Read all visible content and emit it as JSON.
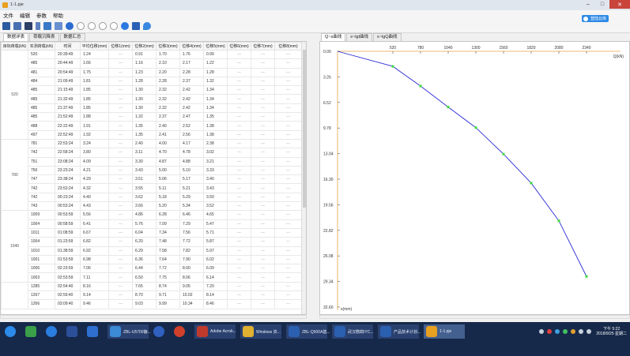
{
  "window": {
    "title": "1-1.pje"
  },
  "menu": [
    "文件",
    "编辑",
    "参数",
    "帮助"
  ],
  "login_button": "登陆云库",
  "left_tabs": [
    "数据详表",
    "荷载沉降表",
    "数据汇总"
  ],
  "table": {
    "headers": [
      "目标荷载(kN)",
      "实测荷载(kN)",
      "时间",
      "平均位移(mm)",
      "位移1(mm)",
      "位移2(mm)",
      "位移3(mm)",
      "位移4(mm)",
      "位移5(mm)",
      "位移6(mm)",
      "位移7(mm)",
      "位移8(mm)"
    ],
    "groups": [
      {
        "target": "520",
        "rows": [
          [
            "520",
            "20:39:49",
            "1.24",
            "—",
            "0.91",
            "1.70",
            "1.76",
            "0.99",
            "—",
            "—",
            "—"
          ],
          [
            "485",
            "20:44:49",
            "1.66",
            "—",
            "1.16",
            "2.10",
            "2.17",
            "1.22",
            "—",
            "—",
            "—"
          ],
          [
            "481",
            "20:54:49",
            "1.75",
            "—",
            "1.23",
            "2.20",
            "2.28",
            "1.28",
            "—",
            "—",
            "—"
          ],
          [
            "484",
            "21:09:49",
            "1.81",
            "—",
            "1.28",
            "2.28",
            "2.37",
            "1.32",
            "—",
            "—",
            "—"
          ],
          [
            "485",
            "21:15:49",
            "1.85",
            "—",
            "1.30",
            "2.32",
            "2.42",
            "1.34",
            "—",
            "—",
            "—"
          ],
          [
            "485",
            "21:32:49",
            "1.85",
            "—",
            "1.30",
            "2.32",
            "2.42",
            "1.34",
            "—",
            "—",
            "—"
          ],
          [
            "485",
            "21:37:49",
            "1.85",
            "—",
            "1.30",
            "2.32",
            "2.42",
            "1.34",
            "—",
            "—",
            "—"
          ],
          [
            "485",
            "21:52:49",
            "1.88",
            "—",
            "1.32",
            "2.37",
            "2.47",
            "1.35",
            "—",
            "—",
            "—"
          ],
          [
            "488",
            "22:22:49",
            "1.91",
            "—",
            "1.35",
            "2.40",
            "2.52",
            "1.38",
            "—",
            "—",
            "—"
          ],
          [
            "497",
            "22:52:49",
            "1.92",
            "—",
            "1.35",
            "2.41",
            "2.56",
            "1.38",
            "—",
            "—",
            "—"
          ]
        ]
      },
      {
        "target": "780",
        "rows": [
          [
            "781",
            "22:53:24",
            "3.24",
            "—",
            "2.40",
            "4.00",
            "4.17",
            "2.38",
            "—",
            "—",
            "—"
          ],
          [
            "742",
            "22:58:24",
            "3.80",
            "—",
            "3.11",
            "4.70",
            "4.78",
            "3.02",
            "—",
            "—",
            "—"
          ],
          [
            "751",
            "23:08:24",
            "4.09",
            "—",
            "3.30",
            "4.87",
            "4.88",
            "3.21",
            "—",
            "—",
            "—"
          ],
          [
            "750",
            "23:23:24",
            "4.21",
            "—",
            "3.43",
            "5.00",
            "5.10",
            "3.33",
            "—",
            "—",
            "—"
          ],
          [
            "747",
            "23:38:24",
            "4.29",
            "—",
            "3.51",
            "5.06",
            "5.17",
            "3.40",
            "—",
            "—",
            "—"
          ],
          [
            "742",
            "23:53:24",
            "4.32",
            "—",
            "3.55",
            "5.11",
            "5.21",
            "3.43",
            "—",
            "—",
            "—"
          ],
          [
            "742",
            "00:23:24",
            "4.40",
            "—",
            "3.62",
            "5.18",
            "5.29",
            "3.50",
            "—",
            "—",
            "—"
          ],
          [
            "743",
            "00:53:24",
            "4.43",
            "—",
            "3.66",
            "5.20",
            "5.34",
            "3.52",
            "—",
            "—",
            "—"
          ]
        ]
      },
      {
        "target": "1040",
        "rows": [
          [
            "1009",
            "00:53:59",
            "5.56",
            "—",
            "4.86",
            "6.28",
            "6.46",
            "4.65",
            "—",
            "—",
            "—"
          ],
          [
            "1004",
            "00:58:59",
            "6.41",
            "—",
            "5.76",
            "7.09",
            "7.29",
            "5.47",
            "—",
            "—",
            "—"
          ],
          [
            "1011",
            "01:08:59",
            "6.67",
            "—",
            "6.04",
            "7.34",
            "7.56",
            "5.71",
            "—",
            "—",
            "—"
          ],
          [
            "1004",
            "01:23:59",
            "6.82",
            "—",
            "6.20",
            "7.48",
            "7.72",
            "5.87",
            "—",
            "—",
            "—"
          ],
          [
            "1010",
            "01:38:59",
            "6.92",
            "—",
            "6.29",
            "7.58",
            "7.82",
            "5.97",
            "—",
            "—",
            "—"
          ],
          [
            "1001",
            "01:53:59",
            "6.98",
            "—",
            "6.36",
            "7.64",
            "7.90",
            "6.02",
            "—",
            "—",
            "—"
          ],
          [
            "1006",
            "02:23:59",
            "7.06",
            "—",
            "6.44",
            "7.72",
            "8.00",
            "6.09",
            "—",
            "—",
            "—"
          ],
          [
            "1003",
            "02:53:59",
            "7.11",
            "—",
            "6.50",
            "7.75",
            "8.06",
            "6.14",
            "—",
            "—",
            "—"
          ]
        ]
      },
      {
        "target": "",
        "rows": [
          [
            "1285",
            "02:54:40",
            "8.16",
            "—",
            "7.65",
            "8.74",
            "9.05",
            "7.20",
            "—",
            "—",
            "—"
          ],
          [
            "1267",
            "02:59:40",
            "9.14",
            "—",
            "8.70",
            "9.71",
            "10.02",
            "8.14",
            "—",
            "—",
            "—"
          ],
          [
            "1266",
            "03:09:40",
            "9.46",
            "—",
            "9.03",
            "9.99",
            "10.34",
            "8.46",
            "—",
            "—",
            "—"
          ]
        ]
      }
    ]
  },
  "right_tabs": [
    "Q~s曲线",
    "s~lgt曲线",
    "s~lgQ曲线"
  ],
  "chart_data": {
    "type": "line",
    "x_ticks": [
      "520",
      "780",
      "1040",
      "1300",
      "1560",
      "1820",
      "2080",
      "2340"
    ],
    "x_unit": "Q(kN)",
    "y_ticks": [
      "0.00",
      "3.26",
      "6.52",
      "9.78",
      "13.04",
      "16.30",
      "19.56",
      "22.82",
      "26.08",
      "29.34",
      "32.60"
    ],
    "y_unit": "s(mm)",
    "xlim": [
      0,
      2600
    ],
    "ylim": [
      0,
      32.6
    ],
    "y_inverted": true,
    "x_axis_position": "top",
    "series": [
      {
        "x": [
          0,
          520,
          780,
          1040,
          1300,
          1560,
          1820,
          2080,
          2340
        ],
        "y": [
          0,
          1.92,
          4.43,
          7.11,
          9.73,
          13.1,
          16.8,
          21.6,
          28.7
        ]
      }
    ],
    "line_color": "#2b2bd6",
    "marker_color": "#3ddc3d"
  },
  "taskbar": {
    "apps": [
      "ZBL-U5700静...",
      "Adobe Acrob...",
      "Windows 资...",
      "ZBL-Q500A基...",
      "武汉鹦鹉IYC...",
      "产品技术计划...",
      "1-1.pje"
    ],
    "clock_time": "下午 5:22",
    "clock_date": "2018/9/25 星期二"
  }
}
